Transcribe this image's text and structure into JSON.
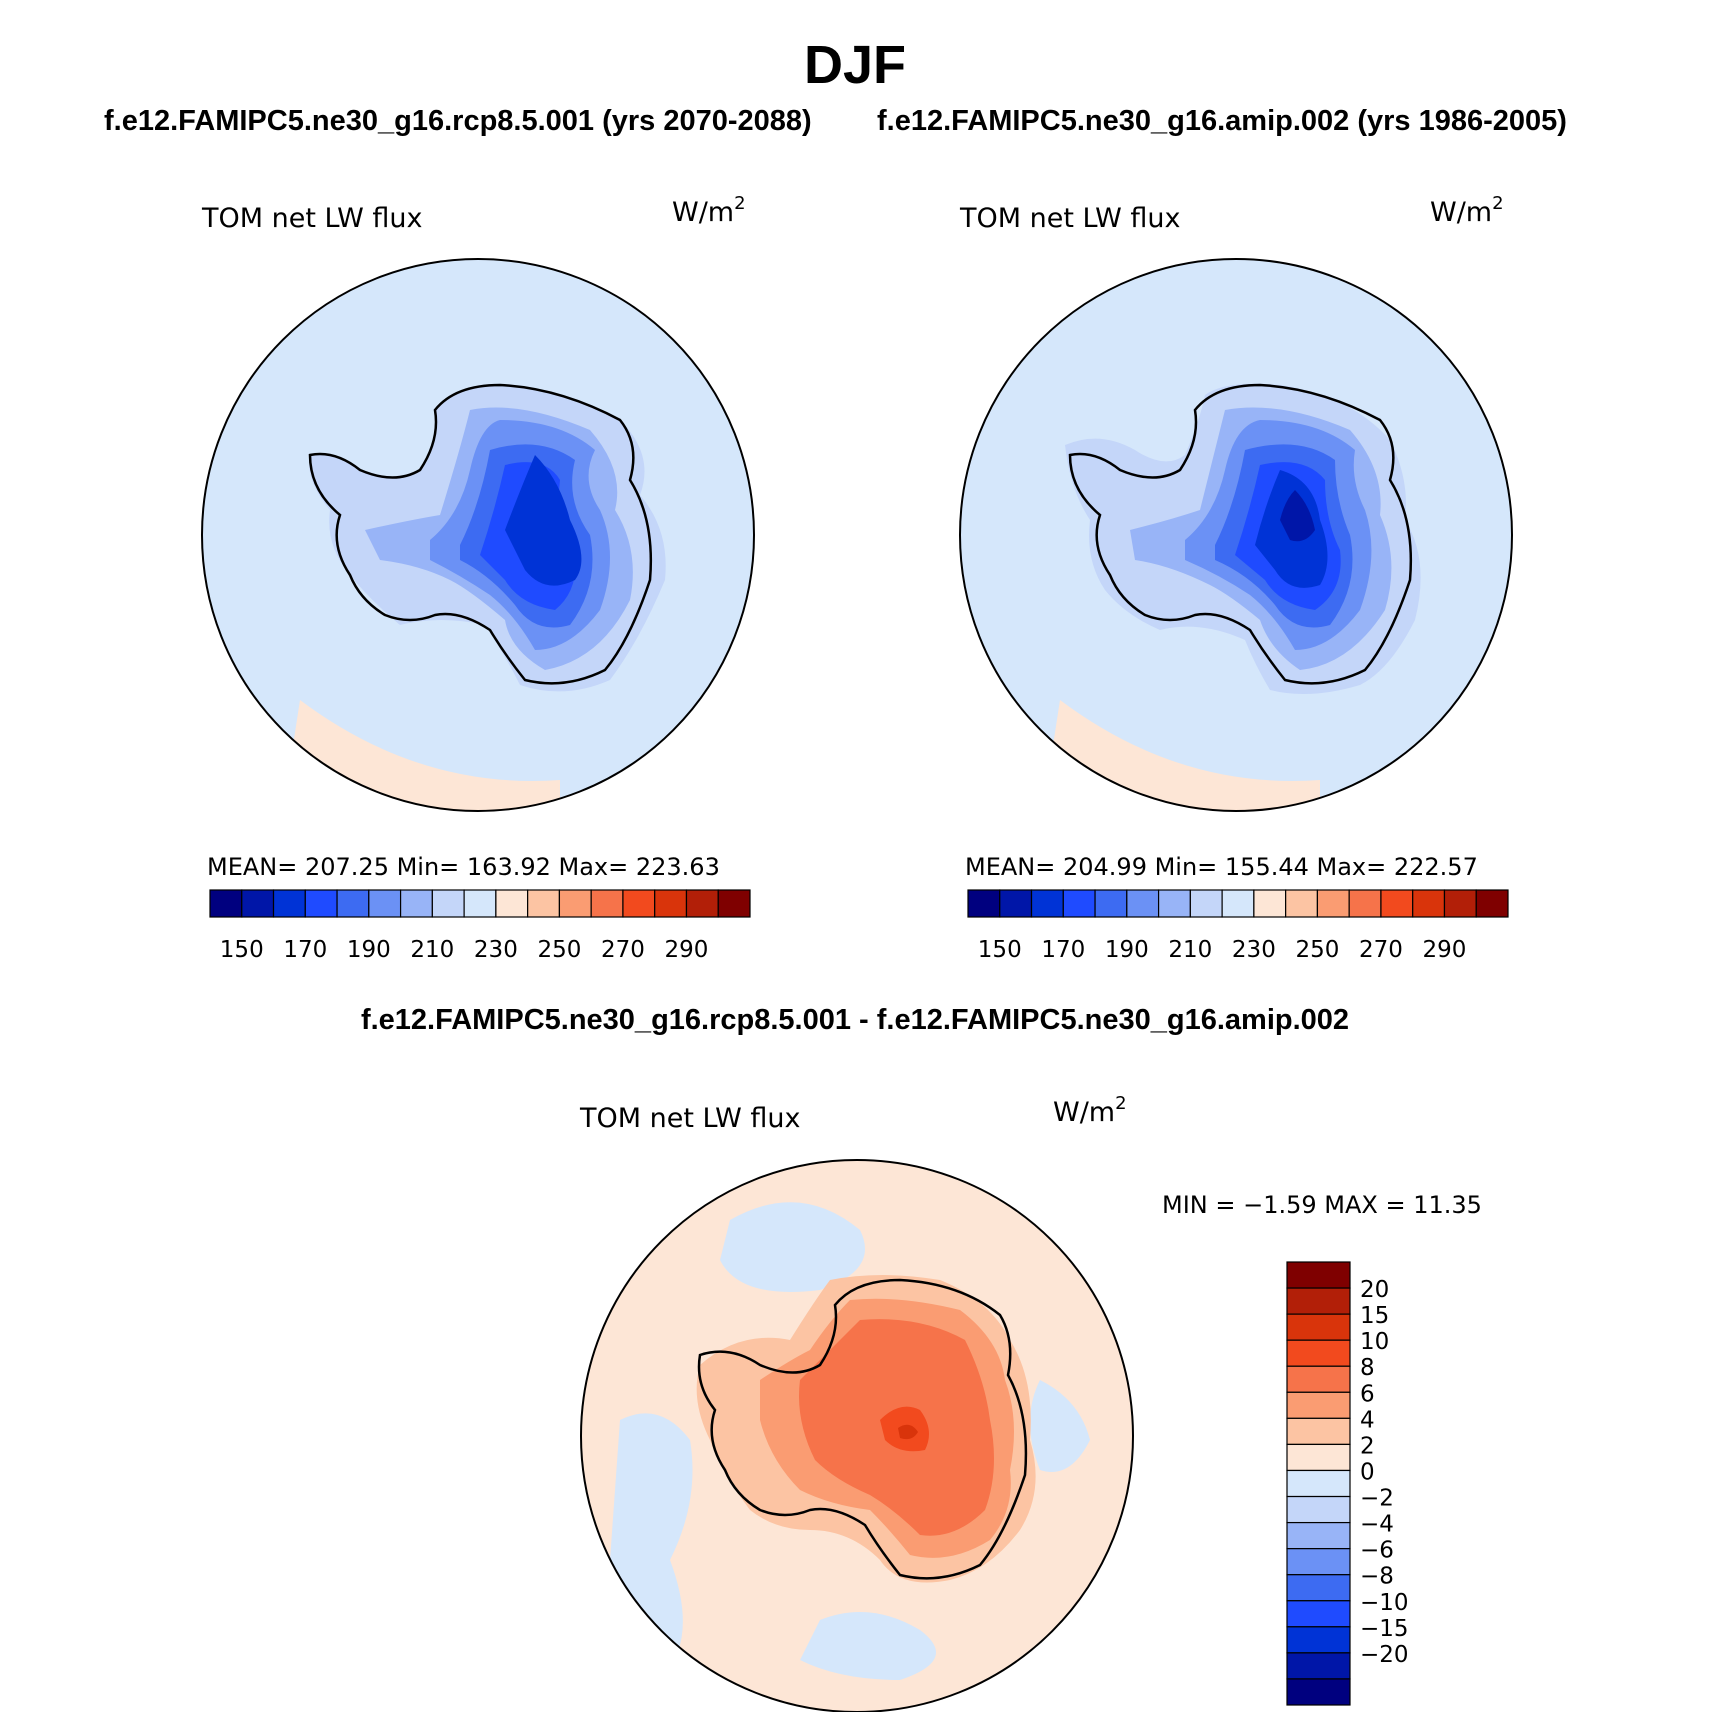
{
  "figure": {
    "title": "DJF",
    "left_case_title": "f.e12.FAMIPC5.ne30_g16.rcp8.5.001 (yrs 2070-2088)",
    "right_case_title": "f.e12.FAMIPC5.ne30_g16.amip.002 (yrs 1986-2005)",
    "diff_title": "f.e12.FAMIPC5.ne30_g16.rcp8.5.001 - f.e12.FAMIPC5.ne30_g16.amip.002"
  },
  "panels": {
    "left": {
      "variable": "TOM net LW flux",
      "units": "W/m",
      "units_sup": "2",
      "stats": "MEAN=  207.25   Min=  163.92   Max=  223.63"
    },
    "right": {
      "variable": "TOM net LW flux",
      "units": "W/m",
      "units_sup": "2",
      "stats": "MEAN=  204.99   Min=  155.44   Max=  222.57"
    },
    "diff": {
      "variable": "TOM net LW flux",
      "units": "W/m",
      "units_sup": "2",
      "stats": "MIN =    −1.59  MAX =    11.35"
    }
  },
  "colorbars": {
    "main": {
      "colors": [
        "#00007f",
        "#0016a8",
        "#0033d6",
        "#1f4bff",
        "#3d6bf2",
        "#6b91f5",
        "#98b4f7",
        "#c4d6f9",
        "#d5e7fb",
        "#fde6d6",
        "#fcc4a3",
        "#fa9c72",
        "#f6734a",
        "#f24a1e",
        "#d9340b",
        "#b21f08",
        "#7f0000"
      ],
      "labels": [
        "150",
        "170",
        "190",
        "210",
        "230",
        "250",
        "270",
        "290"
      ]
    },
    "diff": {
      "colors": [
        "#7f0000",
        "#b21f08",
        "#d9340b",
        "#f24a1e",
        "#f6734a",
        "#fa9c72",
        "#fcc4a3",
        "#fde6d6",
        "#d5e7fb",
        "#c4d6f9",
        "#98b4f7",
        "#6b91f5",
        "#3d6bf2",
        "#1f4bff",
        "#0033d6",
        "#0016a8",
        "#00007f"
      ],
      "labels": [
        "20",
        "15",
        "10",
        "8",
        "6",
        "4",
        "2",
        "0",
        "−2",
        "−4",
        "−6",
        "−8",
        "−10",
        "−15",
        "−20"
      ]
    }
  },
  "map_colors": {
    "ocean_main": "#d5e7fb",
    "diff_ocean": "#fde6d6"
  }
}
